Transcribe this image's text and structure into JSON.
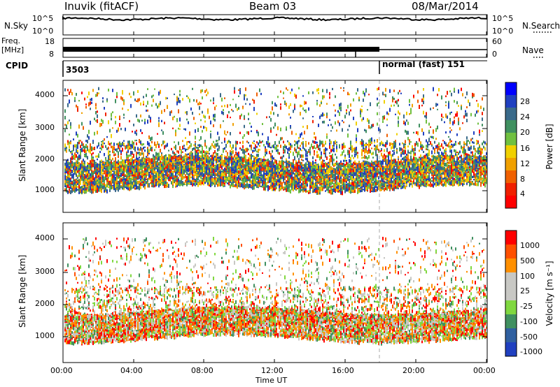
{
  "header": {
    "radar": "Inuvik (fitACF)",
    "beam": "Beam 03",
    "date": "08/Mar/2014"
  },
  "top_panels": {
    "nsky_label": "N.Sky",
    "nsearch_label": "N.Search",
    "nsky_ticks": [
      "10^5",
      "10^0"
    ],
    "freq_label": "Freq.",
    "freq_unit": "[MHz]",
    "freq_ticks": [
      "18",
      "8"
    ],
    "nave_label": "Nave",
    "nave_ticks": [
      "60",
      "0"
    ],
    "cpid_label": "CPID",
    "cpid_left": "3503",
    "cpid_right": "normal (fast) 151"
  },
  "colors": {
    "power": [
      "#0000ff",
      "#2040c0",
      "#3a6a8a",
      "#409060",
      "#70c040",
      "#f0d000",
      "#f0a000",
      "#f06000",
      "#f02000",
      "#ff0000"
    ],
    "velocity": [
      "#ff0000",
      "#ff5000",
      "#ff9000",
      "#c8c8c4",
      "#c8c8c4",
      "#80d840",
      "#409060",
      "#3060a0",
      "#2040c0"
    ]
  },
  "chart_data": [
    {
      "type": "heatmap",
      "panel": "power",
      "ylabel": "Slant Range [km]",
      "ylim": [
        200,
        4600
      ],
      "yticks": [
        "4000",
        "3000",
        "2000",
        "1000"
      ],
      "colorbar_label": "Power [dB]",
      "colorbar_ticks": [
        "28",
        "24",
        "20",
        "16",
        "12",
        "8",
        "4"
      ]
    },
    {
      "type": "heatmap",
      "panel": "velocity",
      "xlabel": "Time UT",
      "xticks": [
        "00:00",
        "04:00",
        "08:00",
        "12:00",
        "16:00",
        "20:00",
        "00:00"
      ],
      "ylabel": "Slant Range [km]",
      "ylim": [
        200,
        4600
      ],
      "yticks": [
        "4000",
        "3000",
        "2000",
        "1000"
      ],
      "colorbar_label": "Velocity [m s⁻¹]",
      "colorbar_ticks": [
        "1000",
        "500",
        "100",
        "25",
        "-25",
        "-100",
        "-500",
        "-1000"
      ]
    }
  ]
}
